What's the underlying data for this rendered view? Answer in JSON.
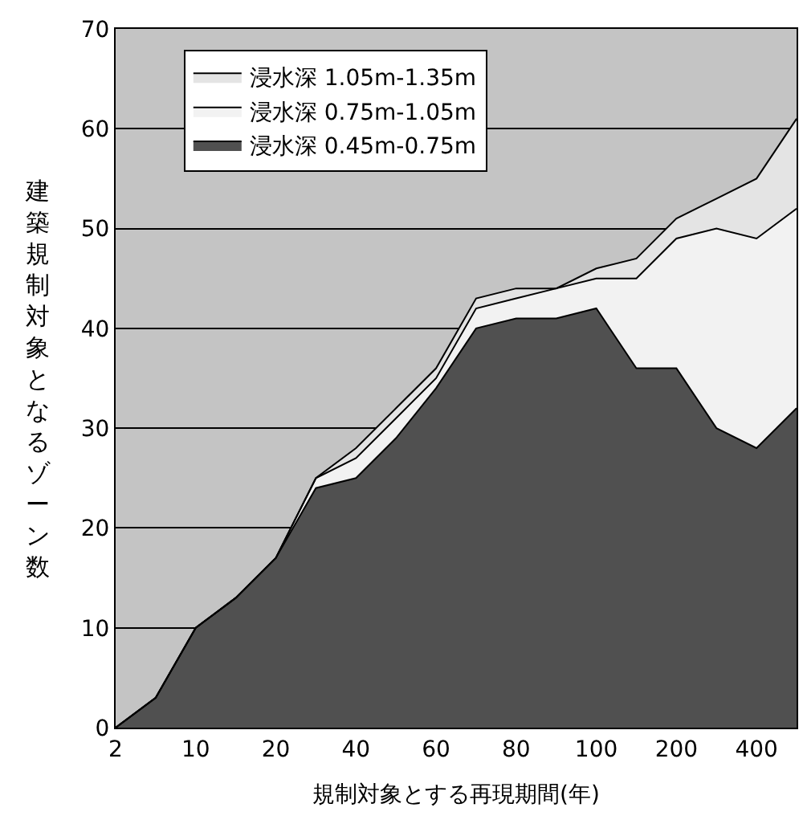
{
  "chart_data": {
    "type": "area",
    "stacked": true,
    "xlabel": "規制対象とする再現期間(年)",
    "ylabel": "建築規制対象となるゾーン数",
    "categories": [
      "2",
      null,
      "10",
      null,
      "20",
      null,
      "40",
      null,
      "60",
      null,
      "80",
      null,
      "100",
      null,
      "200",
      null,
      "400",
      null
    ],
    "series": [
      {
        "name": "浸水深 0.45m-0.75m",
        "color": "#505050",
        "values": [
          0,
          3,
          10,
          13,
          17,
          24,
          25,
          29,
          34,
          40,
          41,
          41,
          42,
          36,
          36,
          30,
          28,
          32
        ]
      },
      {
        "name": "浸水深 0.75m-1.05m",
        "color": "#f2f2f2",
        "values": [
          0,
          0,
          0,
          0,
          0,
          1,
          2,
          2,
          1,
          2,
          2,
          3,
          3,
          9,
          13,
          20,
          21,
          20
        ]
      },
      {
        "name": "浸水深 1.05m-1.35m",
        "color": "#e4e4e4",
        "values": [
          0,
          0,
          0,
          0,
          0,
          0,
          1,
          1,
          1,
          1,
          1,
          0,
          1,
          2,
          2,
          3,
          6,
          9
        ]
      }
    ],
    "ylim": [
      0,
      70
    ],
    "yticks": [
      0,
      10,
      20,
      30,
      40,
      50,
      60,
      70
    ],
    "grid": "y",
    "legend": "top left"
  }
}
